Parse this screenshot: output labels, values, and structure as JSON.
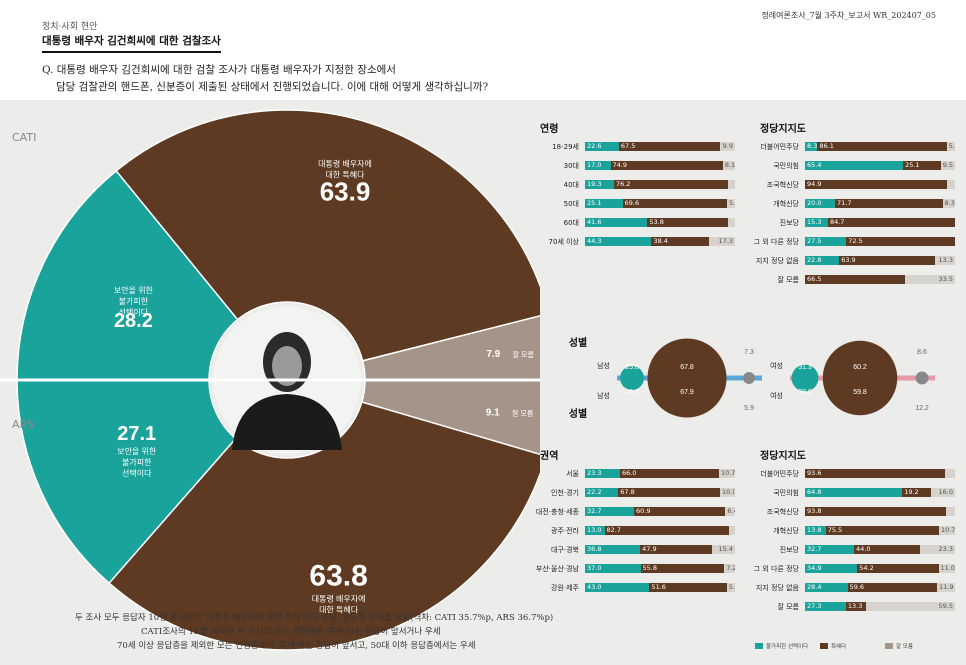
{
  "colors": {
    "teal": "#1aa39b",
    "brown": "#5e3a22",
    "gray": "#a59488",
    "lightgray": "#d6d3ce",
    "blue": "#5aa7d8",
    "pink": "#e89aa6"
  },
  "header": {
    "section": "정치·사회 현안",
    "subject": "대통령 배우자 김건희씨에 대한 검찰조사",
    "report": "정례여론조사_7월 3주차_보고서   WR_202407_05",
    "question_line1": "Q. 대통령 배우자 김건희씨에 대한 검찰 조사가 대통령 배우자가 지정한 장소에서",
    "question_line2": "담당 검찰관의 핸드폰, 신분증이 제출된 상태에서 진행되었습니다. 이에 대해 어떻게 생각하십니까?"
  },
  "surveys": {
    "cati": "CATI",
    "ars": "ARS"
  },
  "footer": {
    "line1": "두 조사 모두 응답자 10명 중 6명은 '대통령 배우자에 대한 특혜'라고 응답, 압도적 우세를 보임(격차: CATI 35.7%p, ARS 36.7%p)",
    "line2": "CATI조사의 TK를 제외한 두 조사의 모든 권역에서 '특혜'라는 응답이 앞서거나 우세",
    "line3": "70세 이상 응답층을 제외한 모든 연령층에서 '특혜'라는 응답이 앞서고, 50대 이하 응답층에서는 우세"
  },
  "chart_data": [
    {
      "type": "pie",
      "name": "CATI",
      "slices": [
        {
          "label": "대통령 배우자에 대한 특혜다",
          "value": 63.9
        },
        {
          "label": "보안을 위한 불가피한 선택이다",
          "value": 28.2
        },
        {
          "label": "잘 모름",
          "value": 7.9
        }
      ]
    },
    {
      "type": "pie",
      "name": "ARS",
      "slices": [
        {
          "label": "대통령 배우자에 대한 특혜다",
          "value": 63.8
        },
        {
          "label": "보안을 위한 불가피한 선택이다",
          "value": 27.1
        },
        {
          "label": "잘 모름",
          "value": 9.1
        }
      ]
    },
    {
      "type": "bar",
      "title": "연령",
      "stacked": true,
      "categories": [
        "18-29세",
        "30대",
        "40대",
        "50대",
        "60대",
        "70세 이상"
      ],
      "series": [
        {
          "name": "불가피한 선택이다",
          "values": [
            22.6,
            17.0,
            19.3,
            25.1,
            41.6,
            44.3
          ]
        },
        {
          "name": "특혜다",
          "values": [
            67.5,
            74.9,
            76.2,
            69.6,
            53.8,
            38.4
          ]
        },
        {
          "name": "잘 모름",
          "values": [
            9.9,
            8.1,
            null,
            5.2,
            null,
            17.3
          ]
        }
      ]
    },
    {
      "type": "bar",
      "title": "정당지지도",
      "stacked": true,
      "categories": [
        "더불어민주당",
        "국민의힘",
        "조국혁신당",
        "개혁신당",
        "진보당",
        "그 외 다른 정당",
        "지지 정당 없음",
        "잘 모름"
      ],
      "series": [
        {
          "name": "불가피한 선택이다",
          "values": [
            8.3,
            65.4,
            null,
            20.0,
            15.3,
            27.5,
            22.8,
            null
          ]
        },
        {
          "name": "특혜다",
          "values": [
            86.1,
            25.1,
            94.9,
            71.7,
            84.7,
            72.5,
            63.9,
            66.5
          ]
        },
        {
          "name": "잘 모름",
          "values": [
            5.5,
            9.5,
            null,
            8.3,
            null,
            null,
            13.3,
            33.5
          ]
        }
      ]
    },
    {
      "type": "scatter",
      "title": "성별",
      "groups": [
        {
          "label": "남성",
          "survey": "CATI",
          "values": [
            25.0,
            67.8,
            7.3
          ]
        },
        {
          "label": "남성",
          "survey": "ARS",
          "values": [
            26.2,
            67.9,
            5.9
          ]
        },
        {
          "label": "여성",
          "survey": "CATI",
          "values": [
            31.3,
            60.2,
            8.6
          ]
        },
        {
          "label": "여성",
          "survey": "ARS",
          "values": [
            28.0,
            59.8,
            12.2
          ]
        }
      ]
    },
    {
      "type": "bar",
      "title": "권역",
      "stacked": true,
      "categories": [
        "서울",
        "인천·경기",
        "대전·충청·세종",
        "광주·전라",
        "대구·경북",
        "부산·울산·경남",
        "강원·제주"
      ],
      "series": [
        {
          "name": "불가피한 선택이다",
          "values": [
            23.3,
            22.2,
            32.7,
            13.0,
            36.8,
            37.0,
            43.0
          ]
        },
        {
          "name": "특혜다",
          "values": [
            66.0,
            67.8,
            60.9,
            82.7,
            47.9,
            55.8,
            51.6
          ]
        },
        {
          "name": "잘 모름",
          "values": [
            10.7,
            10.0,
            6.4,
            null,
            15.4,
            7.2,
            5.5
          ]
        }
      ]
    },
    {
      "type": "bar",
      "title": "정당지지도",
      "stacked": true,
      "categories": [
        "더불어민주당",
        "국민의힘",
        "조국혁신당",
        "개혁신당",
        "진보당",
        "그 외 다른 정당",
        "지지 정당 없음",
        "잘 모름"
      ],
      "series": [
        {
          "name": "불가피한 선택이다",
          "values": [
            null,
            64.8,
            null,
            13.8,
            32.7,
            34.9,
            28.4,
            27.3
          ]
        },
        {
          "name": "특혜다",
          "values": [
            93.6,
            19.2,
            93.8,
            75.5,
            44.0,
            54.2,
            59.6,
            13.3
          ]
        },
        {
          "name": "잘 모름",
          "values": [
            null,
            16.0,
            null,
            10.7,
            23.3,
            11.0,
            11.9,
            59.5
          ]
        }
      ]
    }
  ],
  "legend": [
    "불가피한 선택이다",
    "특혜다",
    "잘 모름"
  ]
}
